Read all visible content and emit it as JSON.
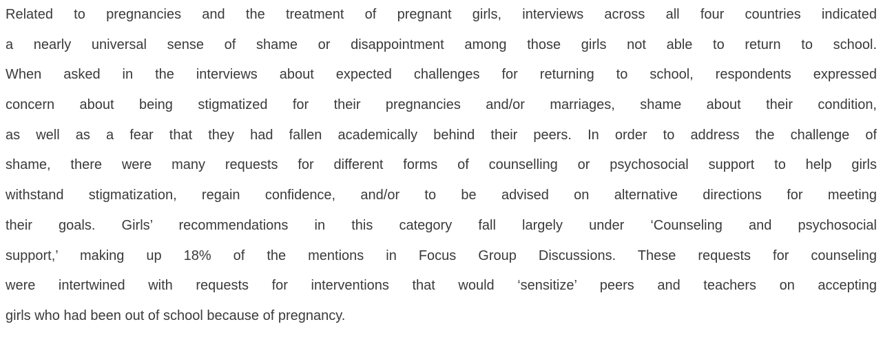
{
  "paragraph": {
    "lines": [
      "Related to pregnancies and the treatment of pregnant girls, interviews across all four countries indicated",
      "a nearly universal sense of shame or disappointment among those girls not able to return to school.",
      "When asked in the interviews about expected challenges for returning to school, respondents expressed",
      "concern about being stigmatized for their pregnancies and/or marriages, shame about their condition,",
      "as well as a fear that they had fallen academically behind their peers. In order to address the challenge of",
      "shame, there were many requests for different forms of counselling or psychosocial support to help girls",
      "withstand stigmatization, regain confidence, and/or to be advised on alternative directions for meeting",
      "their goals. Girls’ recommendations in this category fall largely under ‘Counseling and psychosocial",
      "support,’ making up 18% of the mentions in Focus Group Discussions. These requests for counseling",
      "were intertwined with requests for interventions that would ‘sensitize’ peers and teachers on accepting",
      "girls who had been out of school because of pregnancy."
    ]
  }
}
